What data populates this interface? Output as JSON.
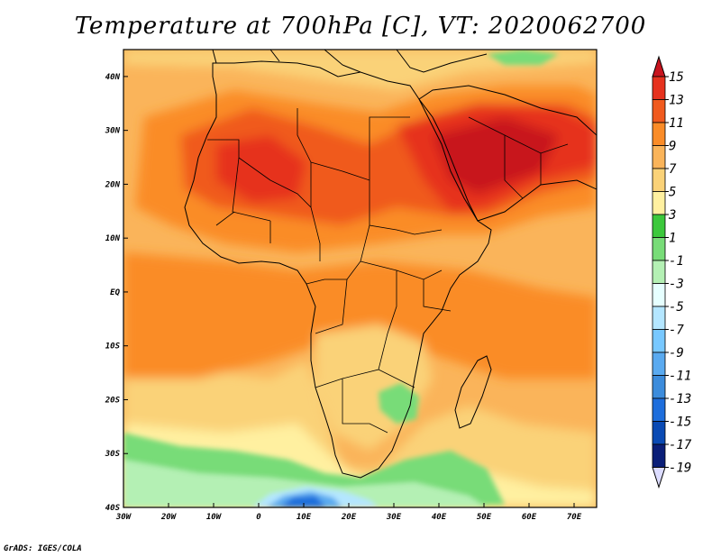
{
  "title": "Temperature at 700hPa [C], VT: 2020062700",
  "footer": "GrADS: IGES/COLA",
  "map": {
    "lon_range": [
      -30,
      75
    ],
    "lat_range": [
      -40,
      45
    ],
    "lon_ticks": [
      {
        "value": -30,
        "label": "30W"
      },
      {
        "value": -20,
        "label": "20W"
      },
      {
        "value": -10,
        "label": "10W"
      },
      {
        "value": 0,
        "label": "0"
      },
      {
        "value": 10,
        "label": "10E"
      },
      {
        "value": 20,
        "label": "20E"
      },
      {
        "value": 30,
        "label": "30E"
      },
      {
        "value": 40,
        "label": "40E"
      },
      {
        "value": 50,
        "label": "50E"
      },
      {
        "value": 60,
        "label": "60E"
      },
      {
        "value": 70,
        "label": "70E"
      }
    ],
    "lat_ticks": [
      {
        "value": 40,
        "label": "40N"
      },
      {
        "value": 30,
        "label": "30N"
      },
      {
        "value": 20,
        "label": "20N"
      },
      {
        "value": 10,
        "label": "10N"
      },
      {
        "value": 0,
        "label": "EQ"
      },
      {
        "value": -10,
        "label": "10S"
      },
      {
        "value": -20,
        "label": "20S"
      },
      {
        "value": -30,
        "label": "30S"
      },
      {
        "value": -40,
        "label": "40S"
      }
    ]
  },
  "colorbar": {
    "labels": [
      "15",
      "13",
      "11",
      "9",
      "7",
      "5",
      "3",
      "1",
      "-1",
      "-3",
      "-5",
      "-7",
      "-9",
      "-11",
      "-13",
      "-15",
      "-17",
      "-19"
    ],
    "colors": [
      "#c8141e",
      "#e6321e",
      "#f05a1e",
      "#fa8c28",
      "#fab45a",
      "#fad278",
      "#fff0a0",
      "#3cc83c",
      "#78dc78",
      "#b4f0b4",
      "#e6ffff",
      "#b4e6ff",
      "#78c8ff",
      "#5aaaf0",
      "#3c8cdc",
      "#1e6edc",
      "#0a4ab4",
      "#0a1e78",
      "#dcdcff"
    ]
  }
}
